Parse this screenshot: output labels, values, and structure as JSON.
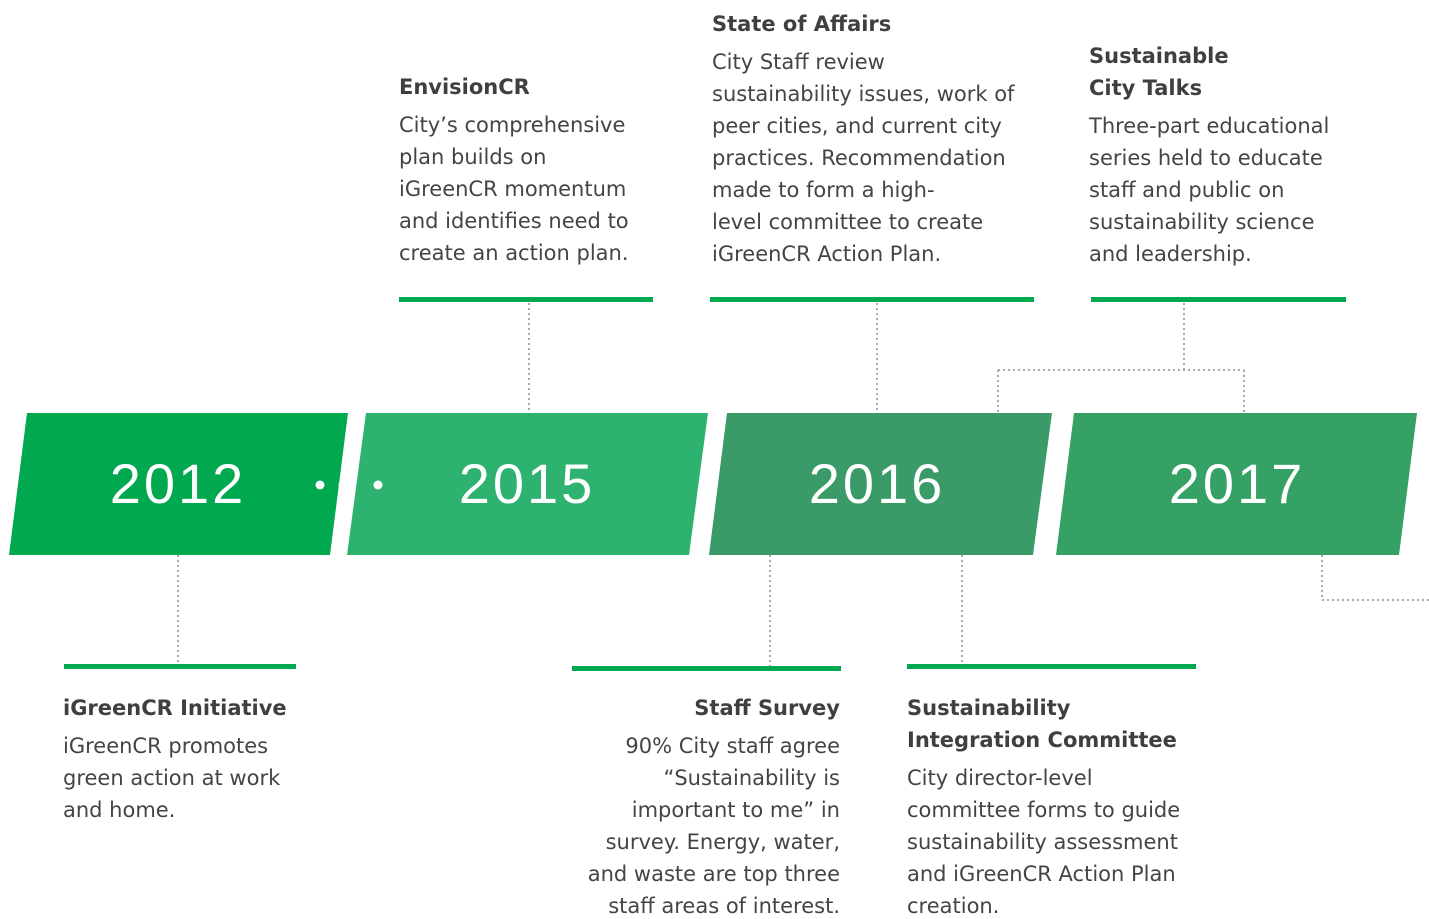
{
  "timeline": {
    "years": [
      "2012",
      "2015",
      "2016",
      "2017"
    ],
    "events": [
      {
        "title": [
          "EnvisionCR"
        ],
        "body": [
          "City’s comprehensive",
          "plan builds on",
          "iGreenCR momentum",
          "and identifies need to",
          "create an action plan."
        ]
      },
      {
        "title": [
          "State of Affairs"
        ],
        "body": [
          "City Staff review",
          "sustainability issues, work of",
          "peer cities, and current city",
          "practices. Recommendation",
          "made to form a high-",
          "level committee to create",
          "iGreenCR Action Plan."
        ]
      },
      {
        "title": [
          "Sustainable",
          "City Talks"
        ],
        "body": [
          "Three-part educational",
          "series held to educate",
          "staff and public on",
          "sustainability science",
          "and leadership."
        ]
      },
      {
        "title": [
          "iGreenCR Initiative"
        ],
        "body": [
          "iGreenCR promotes",
          "green action at work",
          "and home."
        ]
      },
      {
        "title": [
          "Staff Survey"
        ],
        "body": [
          "90% City staff agree",
          "“Sustainability is",
          "important to me” in",
          "survey. Energy, water,",
          "and waste are top three",
          "staff areas of interest."
        ]
      },
      {
        "title": [
          "Sustainability",
          "Integration Committee"
        ],
        "body": [
          "City director-level",
          "committee forms to guide",
          "sustainability assessment",
          "and iGreenCR Action Plan",
          "creation."
        ]
      }
    ]
  }
}
